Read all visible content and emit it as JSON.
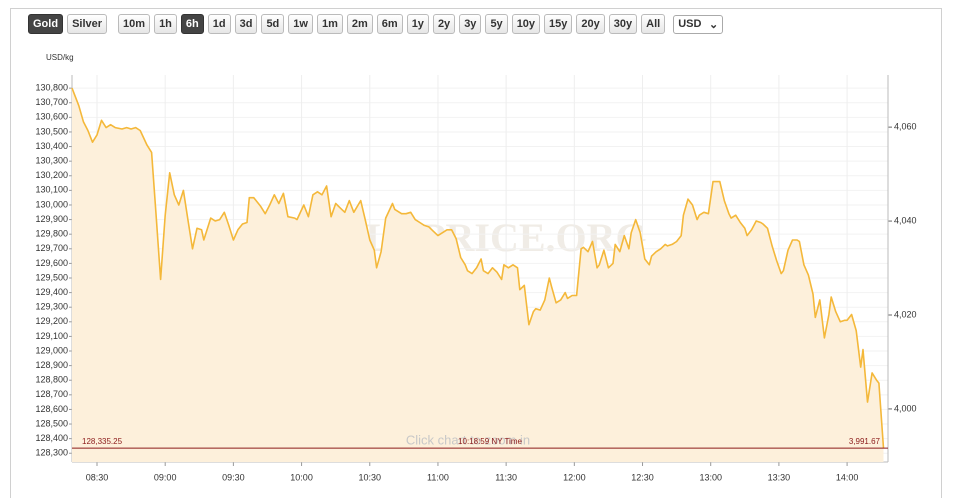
{
  "toolbar": {
    "metals": [
      "Gold",
      "Silver"
    ],
    "active_metal": 0,
    "ranges": [
      "10m",
      "1h",
      "6h",
      "1d",
      "3d",
      "5d",
      "1w",
      "1m",
      "2m",
      "6m",
      "1y",
      "2y",
      "3y",
      "5y",
      "10y",
      "15y",
      "20y",
      "30y",
      "All"
    ],
    "active_range": 2,
    "currency": "USD"
  },
  "chart_data": {
    "type": "area",
    "y_label": "USD/kg",
    "watermark": "GOLDPRICE.ORG",
    "hint": "Click chart to zoom in",
    "grid": true,
    "xlim": [
      499,
      858
    ],
    "xticks": [
      {
        "value": 510,
        "label": "08:30"
      },
      {
        "value": 540,
        "label": "09:00"
      },
      {
        "value": 570,
        "label": "09:30"
      },
      {
        "value": 600,
        "label": "10:00"
      },
      {
        "value": 630,
        "label": "10:30"
      },
      {
        "value": 660,
        "label": "11:00"
      },
      {
        "value": 690,
        "label": "11:30"
      },
      {
        "value": 720,
        "label": "12:00"
      },
      {
        "value": 750,
        "label": "12:30"
      },
      {
        "value": 780,
        "label": "13:00"
      },
      {
        "value": 810,
        "label": "13:30"
      },
      {
        "value": 840,
        "label": "14:00"
      }
    ],
    "ylim": [
      128240,
      130890
    ],
    "yticks": [
      {
        "value": 128300,
        "label": "128,300"
      },
      {
        "value": 128400,
        "label": "128,400"
      },
      {
        "value": 128500,
        "label": "128,500"
      },
      {
        "value": 128600,
        "label": "128,600"
      },
      {
        "value": 128700,
        "label": "128,700"
      },
      {
        "value": 128800,
        "label": "128,800"
      },
      {
        "value": 128900,
        "label": "128,900"
      },
      {
        "value": 129000,
        "label": "129,000"
      },
      {
        "value": 129100,
        "label": "129,100"
      },
      {
        "value": 129200,
        "label": "129,200"
      },
      {
        "value": 129300,
        "label": "129,300"
      },
      {
        "value": 129400,
        "label": "129,400"
      },
      {
        "value": 129500,
        "label": "129,500"
      },
      {
        "value": 129600,
        "label": "129,600"
      },
      {
        "value": 129700,
        "label": "129,700"
      },
      {
        "value": 129800,
        "label": "129,800"
      },
      {
        "value": 129900,
        "label": "129,900"
      },
      {
        "value": 130000,
        "label": "130,000"
      },
      {
        "value": 130100,
        "label": "130,100"
      },
      {
        "value": 130200,
        "label": "130,200"
      },
      {
        "value": 130300,
        "label": "130,300"
      },
      {
        "value": 130400,
        "label": "130,400"
      },
      {
        "value": 130500,
        "label": "130,500"
      },
      {
        "value": 130600,
        "label": "130,600"
      },
      {
        "value": 130700,
        "label": "130,700"
      },
      {
        "value": 130800,
        "label": "130,800"
      }
    ],
    "y2lim": [
      3988.7,
      4071.1
    ],
    "y2ticks": [
      {
        "value": 4000,
        "label": "4,000"
      },
      {
        "value": 4020,
        "label": "4,020"
      },
      {
        "value": 4040,
        "label": "4,040"
      },
      {
        "value": 4060,
        "label": "4,060"
      }
    ],
    "price_line": {
      "value": 128335.25,
      "label": "128,335.25",
      "y2": {
        "value": 3991.67,
        "label": "3,991.67"
      },
      "time": "10:18:59 NY Time",
      "color": "#8b1a1a"
    },
    "series": [
      {
        "color": "#f4b83a",
        "fill": "#fdf0db",
        "x": [
          499,
          502,
          504,
          506,
          508,
          510,
          512,
          514,
          516,
          518,
          521,
          523,
          525,
          527,
          529,
          532,
          534,
          536,
          538,
          540,
          542,
          544,
          546,
          548,
          550,
          552,
          554,
          556,
          557,
          560,
          562,
          564,
          566,
          568,
          570,
          572,
          574,
          576,
          577,
          579,
          582,
          584,
          586,
          588,
          590,
          592,
          594,
          597,
          598,
          601,
          603,
          605,
          607,
          609,
          611,
          613,
          615,
          617,
          619,
          621,
          623,
          626,
          628,
          630,
          632,
          633,
          635,
          637,
          640,
          641,
          644,
          646,
          648,
          650,
          652,
          654,
          656,
          658,
          660,
          662,
          664,
          666,
          668,
          670,
          672,
          673,
          675,
          677,
          679,
          680,
          682,
          684,
          686,
          688,
          689,
          691,
          693,
          695,
          696,
          698,
          700,
          702,
          703,
          705,
          707,
          709,
          710,
          712,
          714,
          716,
          717,
          719,
          721,
          723,
          724,
          726,
          728,
          730,
          731,
          733,
          735,
          737,
          738,
          740,
          742,
          744,
          745,
          747,
          749,
          751,
          753,
          754,
          756,
          758,
          760,
          761,
          763,
          765,
          767,
          768,
          770,
          772,
          774,
          775,
          777,
          779,
          781,
          782,
          784,
          786,
          788,
          789,
          791,
          793,
          795,
          796,
          798,
          800,
          802,
          803,
          805,
          807,
          809,
          811,
          812,
          814,
          816,
          818,
          819,
          821,
          823,
          825,
          826,
          828,
          830,
          832,
          833,
          835,
          837,
          839,
          840,
          842,
          844,
          846,
          847,
          849,
          851,
          853,
          854,
          856
        ],
        "values": [
          130800,
          130680,
          130570,
          130510,
          130430,
          130480,
          130580,
          130530,
          130550,
          130530,
          130520,
          130530,
          130520,
          130530,
          130510,
          130410,
          130360,
          129930,
          129490,
          129930,
          130220,
          130070,
          130000,
          130100,
          129900,
          129700,
          129840,
          129830,
          129760,
          129910,
          129890,
          129900,
          129950,
          129860,
          129760,
          129830,
          129870,
          129880,
          130050,
          130050,
          129990,
          129940,
          130000,
          130070,
          130010,
          130080,
          129920,
          129910,
          129900,
          130000,
          129920,
          130070,
          130090,
          130070,
          130130,
          129920,
          130010,
          129980,
          129950,
          130030,
          129950,
          130030,
          129900,
          129760,
          129690,
          129570,
          129680,
          129910,
          130010,
          129970,
          129940,
          129940,
          129950,
          129900,
          129880,
          129860,
          129850,
          129820,
          129790,
          129810,
          129830,
          129830,
          129770,
          129640,
          129590,
          129550,
          129530,
          129570,
          129630,
          129550,
          129530,
          129570,
          129540,
          129490,
          129590,
          129570,
          129590,
          129570,
          129420,
          129450,
          129180,
          129270,
          129290,
          129280,
          129350,
          129500,
          129440,
          129330,
          129350,
          129400,
          129360,
          129380,
          129380,
          129700,
          129710,
          129680,
          129750,
          129570,
          129590,
          129690,
          129570,
          129600,
          129730,
          129680,
          129790,
          129700,
          129810,
          129900,
          129810,
          129630,
          129590,
          129650,
          129680,
          129700,
          129730,
          129720,
          129730,
          129750,
          129790,
          129930,
          130040,
          130000,
          129900,
          129930,
          129950,
          129940,
          130160,
          130160,
          130160,
          130030,
          129940,
          129910,
          129930,
          129880,
          129840,
          129790,
          129830,
          129890,
          129880,
          129870,
          129840,
          129720,
          129620,
          129530,
          129550,
          129690,
          129760,
          129760,
          129750,
          129590,
          129520,
          129390,
          129230,
          129350,
          129090,
          129250,
          129370,
          129270,
          129200,
          129210,
          129210,
          129250,
          129140,
          128890,
          129010,
          128650,
          128850,
          128800,
          128780,
          128335.25
        ]
      }
    ]
  }
}
